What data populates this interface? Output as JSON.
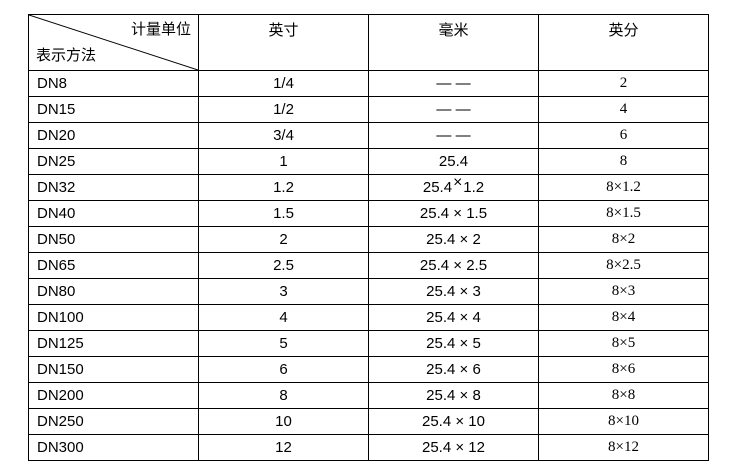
{
  "table": {
    "corner": {
      "top_right": "计量单位",
      "bottom_left": "表示方法"
    },
    "columns": [
      "英寸",
      "毫米",
      "英分"
    ],
    "rows": [
      {
        "dn": "DN8",
        "inch": "1/4",
        "mm": "— —",
        "yingfen": "2"
      },
      {
        "dn": "DN15",
        "inch": "1/2",
        "mm": "— —",
        "yingfen": "4"
      },
      {
        "dn": "DN20",
        "inch": "3/4",
        "mm": "— —",
        "yingfen": "6"
      },
      {
        "dn": "DN25",
        "inch": "1",
        "mm": "25.4",
        "yingfen": "8"
      },
      {
        "dn": "DN32",
        "inch": "1.2",
        "mm": "25.4×1.2",
        "mm_raised_x": true,
        "yingfen": "8×1.2"
      },
      {
        "dn": "DN40",
        "inch": "1.5",
        "mm": "25.4 × 1.5",
        "yingfen": "8×1.5"
      },
      {
        "dn": "DN50",
        "inch": "2",
        "mm": "25.4 × 2",
        "yingfen": "8×2"
      },
      {
        "dn": "DN65",
        "inch": "2.5",
        "mm": "25.4 × 2.5",
        "yingfen": "8×2.5"
      },
      {
        "dn": "DN80",
        "inch": "3",
        "mm": "25.4 × 3",
        "yingfen": "8×3"
      },
      {
        "dn": "DN100",
        "inch": "4",
        "mm": "25.4 × 4",
        "yingfen": "8×4"
      },
      {
        "dn": "DN125",
        "inch": "5",
        "mm": "25.4 × 5",
        "yingfen": "8×5"
      },
      {
        "dn": "DN150",
        "inch": "6",
        "mm": "25.4 × 6",
        "yingfen": "8×6"
      },
      {
        "dn": "DN200",
        "inch": "8",
        "mm": "25.4 × 8",
        "yingfen": "8×8"
      },
      {
        "dn": "DN250",
        "inch": "10",
        "mm": "25.4 × 10",
        "yingfen": "8×10"
      },
      {
        "dn": "DN300",
        "inch": "12",
        "mm": "25.4 × 12",
        "yingfen": "8×12"
      }
    ],
    "colors": {
      "border": "#000000",
      "text": "#000000",
      "background": "#ffffff"
    }
  }
}
